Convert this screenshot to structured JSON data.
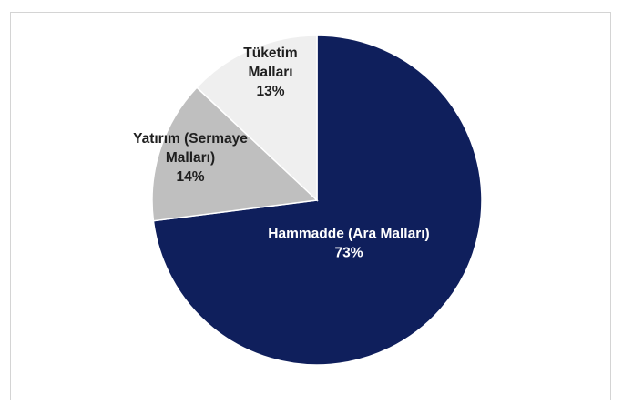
{
  "chart_data": {
    "type": "pie",
    "title": "",
    "categories": [
      "Hammadde (Ara Malları)",
      "Yatırım (Sermaye Malları)",
      "Tüketim Malları"
    ],
    "values": [
      73,
      14,
      13
    ],
    "labels": [
      {
        "lines": [
          "Hammadde (Ara Malları)"
        ],
        "pct": "73%"
      },
      {
        "lines": [
          "Yatırım (Sermaye",
          "Malları)"
        ],
        "pct": "14%"
      },
      {
        "lines": [
          "Tüketim",
          "Malları"
        ],
        "pct": "13%"
      }
    ],
    "colors": [
      "#0f1f5c",
      "#bfbfbf",
      "#efefef"
    ],
    "label_colors": [
      "#ffffff",
      "#1f1f1f",
      "#1f1f1f"
    ],
    "start_angle_deg": 0,
    "direction": "clockwise",
    "legend": "none"
  }
}
